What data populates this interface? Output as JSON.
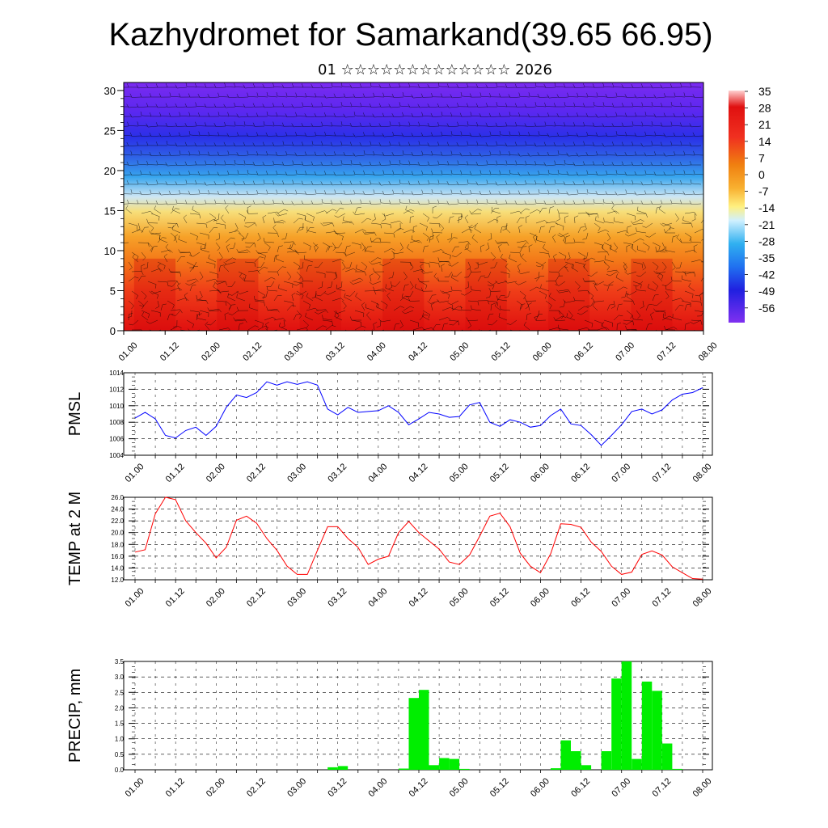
{
  "header": {
    "title": "Kazhydromet for Samarkand(39.65 66.95)",
    "subtitle": "01 ☆☆☆☆☆☆☆☆☆☆☆☆☆ 2026"
  },
  "colors": {
    "pmsl_line": "#0000ff",
    "temp_line": "#ff0000",
    "precip_bar": "#00ee00"
  },
  "chart_data": [
    {
      "type": "heatmap",
      "title": "Kazhydromet for Samarkand(39.65 66.95)",
      "subtitle": "01 ☆☆☆☆☆☆☆☆☆☆☆☆☆ 2026",
      "x_ticks": [
        "01.00",
        "01.12",
        "02.00",
        "02.12",
        "03.00",
        "03.12",
        "04.00",
        "04.12",
        "05.00",
        "05.12",
        "06.00",
        "06.12",
        "07.00",
        "07.12",
        "08.00"
      ],
      "y_ticks": [
        0,
        5,
        10,
        15,
        20,
        25,
        30
      ],
      "ylim": [
        0,
        31
      ],
      "colorbar_labels": [
        "35",
        "28",
        "21",
        "14",
        "7",
        "0",
        "-7",
        "-14",
        "-21",
        "-28",
        "-35",
        "-42",
        "-49",
        "-56"
      ],
      "overlay": "wind barbs"
    },
    {
      "type": "line",
      "ylabel": "PMSL",
      "ylim": [
        1004,
        1014
      ],
      "y_ticks": [
        1004,
        1006,
        1008,
        1010,
        1012,
        1014
      ],
      "x_ticks": [
        "01.00",
        "01.12",
        "02.00",
        "02.12",
        "03.00",
        "03.12",
        "04.00",
        "04.12",
        "05.00",
        "05.12",
        "06.00",
        "06.12",
        "07.00",
        "07.12",
        "08.00"
      ],
      "x_hours": [
        0,
        3,
        6,
        9,
        12,
        15,
        18,
        21,
        24,
        27,
        30,
        33,
        36,
        39,
        42,
        45,
        48,
        51,
        54,
        57,
        60,
        63,
        66,
        69,
        72,
        75,
        78,
        81,
        84,
        87,
        90,
        93,
        96,
        99,
        102,
        105,
        108,
        111,
        114,
        117,
        120,
        123,
        126,
        129,
        132,
        135,
        138,
        141,
        144,
        147,
        150,
        153,
        156,
        159,
        162,
        165,
        168
      ],
      "values": [
        1008.5,
        1009.2,
        1008.4,
        1006.4,
        1006.1,
        1007.0,
        1007.4,
        1006.4,
        1007.5,
        1009.8,
        1011.3,
        1011.0,
        1011.6,
        1012.9,
        1012.5,
        1012.9,
        1012.6,
        1012.9,
        1012.5,
        1009.6,
        1008.9,
        1009.8,
        1009.2,
        1009.3,
        1009.4,
        1010.0,
        1009.2,
        1007.7,
        1008.4,
        1009.2,
        1009.0,
        1008.6,
        1008.7,
        1010.1,
        1010.4,
        1008.0,
        1007.5,
        1008.3,
        1008.0,
        1007.4,
        1007.6,
        1008.8,
        1009.6,
        1007.8,
        1007.6,
        1006.5,
        1005.2,
        1006.4,
        1007.7,
        1009.3,
        1009.6,
        1009.0,
        1009.5,
        1010.7,
        1011.4,
        1011.6,
        1012.2
      ]
    },
    {
      "type": "line",
      "ylabel": "TEMP at 2 M",
      "ylim": [
        12.0,
        26.0
      ],
      "y_ticks": [
        "12.0",
        "14.0",
        "16.0",
        "18.0",
        "20.0",
        "22.0",
        "24.0",
        "26.0"
      ],
      "x_ticks": [
        "01.00",
        "01.12",
        "02.00",
        "02.12",
        "03.00",
        "03.12",
        "04.00",
        "04.12",
        "05.00",
        "05.12",
        "06.00",
        "06.12",
        "07.00",
        "07.12",
        "08.00"
      ],
      "x_hours": [
        0,
        3,
        6,
        9,
        12,
        15,
        18,
        21,
        24,
        27,
        30,
        33,
        36,
        39,
        42,
        45,
        48,
        51,
        54,
        57,
        60,
        63,
        66,
        69,
        72,
        75,
        78,
        81,
        84,
        87,
        90,
        93,
        96,
        99,
        102,
        105,
        108,
        111,
        114,
        117,
        120,
        123,
        126,
        129,
        132,
        135,
        138,
        141,
        144,
        147,
        150,
        153,
        156,
        159,
        162,
        165,
        168
      ],
      "values": [
        16.7,
        17.1,
        23.2,
        26.0,
        25.6,
        22.0,
        20.0,
        18.2,
        15.7,
        17.5,
        22.1,
        22.8,
        21.6,
        19.0,
        17.0,
        14.3,
        12.9,
        12.9,
        17.0,
        21.0,
        21.0,
        19.0,
        17.5,
        14.6,
        15.5,
        16.0,
        20.0,
        21.9,
        20.0,
        18.6,
        17.2,
        15.0,
        14.6,
        16.2,
        19.4,
        22.8,
        23.3,
        21.0,
        16.5,
        14.3,
        13.2,
        16.4,
        21.5,
        21.4,
        20.9,
        18.4,
        16.8,
        14.3,
        12.9,
        13.3,
        16.3,
        16.9,
        16.2,
        14.2,
        13.2,
        12.2,
        12.1
      ]
    },
    {
      "type": "bar",
      "ylabel": "PRECIP, mm",
      "ylim": [
        0.0,
        3.5
      ],
      "y_ticks": [
        "0.0",
        "0.5",
        "1.0",
        "1.5",
        "2.0",
        "2.5",
        "3.0",
        "3.5"
      ],
      "x_ticks": [
        "01.00",
        "01.12",
        "02.00",
        "02.12",
        "03.00",
        "03.12",
        "04.00",
        "04.12",
        "05.00",
        "05.12",
        "06.00",
        "06.12",
        "07.00",
        "07.12",
        "08.00"
      ],
      "bars": [
        {
          "start": 57,
          "end": 60,
          "value": 0.08
        },
        {
          "start": 60,
          "end": 63,
          "value": 0.12
        },
        {
          "start": 78,
          "end": 81,
          "value": 0.04
        },
        {
          "start": 81,
          "end": 84,
          "value": 2.32
        },
        {
          "start": 84,
          "end": 87,
          "value": 2.58
        },
        {
          "start": 87,
          "end": 90,
          "value": 0.15
        },
        {
          "start": 90,
          "end": 93,
          "value": 0.38
        },
        {
          "start": 93,
          "end": 96,
          "value": 0.35
        },
        {
          "start": 96,
          "end": 99,
          "value": 0.03
        },
        {
          "start": 123,
          "end": 126,
          "value": 0.05
        },
        {
          "start": 126,
          "end": 129,
          "value": 0.95
        },
        {
          "start": 129,
          "end": 132,
          "value": 0.6
        },
        {
          "start": 132,
          "end": 135,
          "value": 0.15
        },
        {
          "start": 138,
          "end": 141,
          "value": 0.6
        },
        {
          "start": 141,
          "end": 144,
          "value": 2.95
        },
        {
          "start": 144,
          "end": 147,
          "value": 3.5
        },
        {
          "start": 147,
          "end": 150,
          "value": 0.35
        },
        {
          "start": 150,
          "end": 153,
          "value": 2.85
        },
        {
          "start": 153,
          "end": 156,
          "value": 2.55
        },
        {
          "start": 156,
          "end": 159,
          "value": 0.85
        },
        {
          "start": 159,
          "end": 162,
          "value": 0.03
        }
      ]
    }
  ]
}
